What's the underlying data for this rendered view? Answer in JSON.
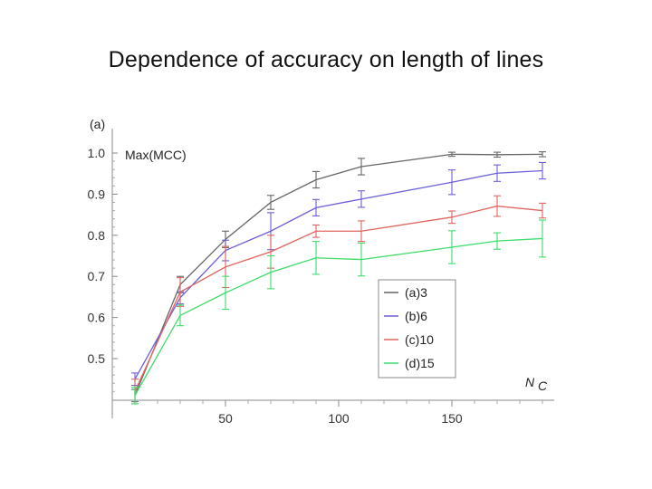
{
  "slide": {
    "title": "Dependence of accuracy on length of lines"
  },
  "chart_data": {
    "type": "line",
    "panel_label": "(a)",
    "ylabel": "Max(MCC)",
    "xlabel": "N",
    "xlabel_subscript": "C",
    "xlim": [
      0,
      195
    ],
    "ylim": [
      0.4,
      1.02
    ],
    "x_ticks": [
      50,
      100,
      150
    ],
    "y_ticks": [
      0.5,
      0.6,
      0.7,
      0.8,
      0.9,
      1.0
    ],
    "y_tick_labels": [
      "0.5",
      "0.6",
      "0.7",
      "0.8",
      "0.9",
      "1.0"
    ],
    "x": [
      10,
      30,
      50,
      70,
      90,
      110,
      150,
      170,
      190
    ],
    "legend_position": "center-right",
    "series": [
      {
        "name": "(a)3",
        "color": "#666666",
        "values": [
          0.41,
          0.68,
          0.79,
          0.88,
          0.935,
          0.967,
          0.997,
          0.996,
          0.997
        ],
        "errors": [
          0.015,
          0.02,
          0.02,
          0.017,
          0.02,
          0.02,
          0.005,
          0.006,
          0.006
        ]
      },
      {
        "name": "(b)6",
        "color": "#6a5fd8",
        "values": [
          0.45,
          0.648,
          0.763,
          0.81,
          0.867,
          0.888,
          0.929,
          0.951,
          0.957
        ],
        "errors": [
          0.015,
          0.015,
          0.025,
          0.045,
          0.02,
          0.02,
          0.03,
          0.02,
          0.02
        ]
      },
      {
        "name": "(c)10",
        "color": "#e0655f",
        "values": [
          0.42,
          0.662,
          0.723,
          0.76,
          0.81,
          0.81,
          0.844,
          0.871,
          0.86
        ],
        "errors": [
          0.03,
          0.035,
          0.05,
          0.04,
          0.015,
          0.025,
          0.015,
          0.025,
          0.018
        ]
      },
      {
        "name": "(d)15",
        "color": "#3ddc6b",
        "values": [
          0.41,
          0.605,
          0.66,
          0.71,
          0.745,
          0.741,
          0.771,
          0.786,
          0.792
        ],
        "errors": [
          0.02,
          0.025,
          0.04,
          0.04,
          0.04,
          0.04,
          0.04,
          0.02,
          0.045
        ]
      }
    ]
  }
}
